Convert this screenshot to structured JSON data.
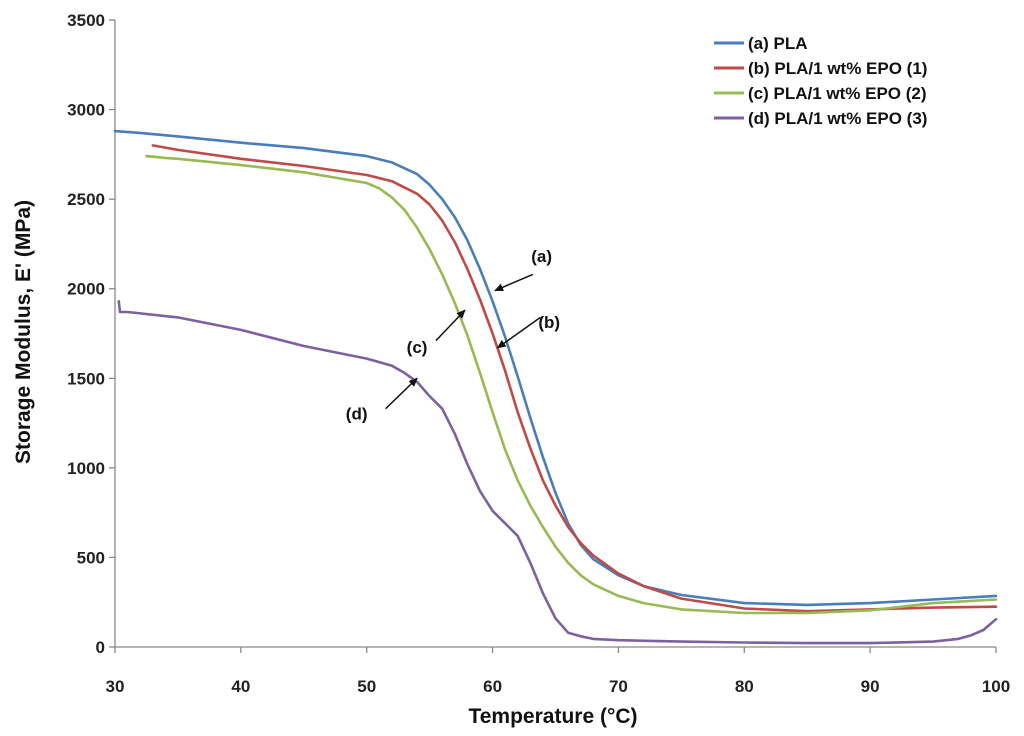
{
  "chart_data": {
    "type": "line",
    "xlabel": "Temperature (°C)",
    "ylabel": "Storage Modulus, E' (MPa)",
    "xlim": [
      30,
      100
    ],
    "ylim": [
      0,
      3500
    ],
    "xticks": [
      30,
      40,
      50,
      60,
      70,
      80,
      90,
      100
    ],
    "yticks": [
      0,
      500,
      1000,
      1500,
      2000,
      2500,
      3000,
      3500
    ],
    "grid": false,
    "legend_position": "top-right",
    "series": [
      {
        "name": "(a) PLA",
        "color": "#4a7ebb",
        "x": [
          30,
          32,
          35,
          40,
          45,
          50,
          52,
          54,
          55,
          56,
          57,
          58,
          59,
          60,
          61,
          62,
          63,
          64,
          65,
          66,
          67,
          68,
          70,
          72,
          75,
          80,
          85,
          90,
          95,
          100
        ],
        "y": [
          2880,
          2870,
          2850,
          2815,
          2785,
          2740,
          2705,
          2640,
          2580,
          2500,
          2400,
          2270,
          2110,
          1930,
          1730,
          1510,
          1280,
          1060,
          860,
          690,
          570,
          490,
          400,
          340,
          290,
          245,
          235,
          245,
          265,
          285
        ]
      },
      {
        "name": "(b) PLA/1 wt% EPO (1)",
        "color": "#be4b48",
        "x": [
          33,
          35,
          40,
          45,
          50,
          52,
          54,
          55,
          56,
          57,
          58,
          59,
          60,
          61,
          62,
          63,
          64,
          65,
          66,
          67,
          68,
          70,
          72,
          75,
          80,
          85,
          90,
          95,
          100
        ],
        "y": [
          2800,
          2775,
          2725,
          2685,
          2635,
          2600,
          2530,
          2470,
          2380,
          2260,
          2110,
          1940,
          1750,
          1540,
          1310,
          1110,
          930,
          790,
          670,
          580,
          510,
          410,
          340,
          270,
          215,
          200,
          210,
          220,
          225
        ]
      },
      {
        "name": "(c) PLA/1 wt% EPO (2)",
        "color": "#98b954",
        "x": [
          32.5,
          34,
          35,
          40,
          45,
          50,
          51,
          52,
          53,
          54,
          55,
          56,
          57,
          58,
          59,
          60,
          61,
          62,
          63,
          64,
          65,
          66,
          67,
          68,
          70,
          72,
          75,
          80,
          85,
          90,
          95,
          100
        ],
        "y": [
          2740,
          2730,
          2725,
          2690,
          2650,
          2590,
          2560,
          2510,
          2440,
          2340,
          2220,
          2080,
          1920,
          1740,
          1530,
          1310,
          1100,
          930,
          790,
          670,
          560,
          470,
          400,
          350,
          285,
          245,
          210,
          190,
          190,
          205,
          245,
          265
        ]
      },
      {
        "name": "(d) PLA/1 wt% EPO (3)",
        "color": "#7d60a0",
        "x": [
          30.3,
          30.4,
          31,
          35,
          40,
          45,
          50,
          52,
          53,
          54,
          55,
          56,
          57,
          58,
          59,
          60,
          61,
          62,
          63,
          64,
          65,
          66,
          67,
          68,
          70,
          75,
          80,
          85,
          90,
          95,
          97,
          98,
          99,
          100
        ],
        "y": [
          1930,
          1870,
          1870,
          1840,
          1770,
          1680,
          1610,
          1570,
          1530,
          1480,
          1400,
          1330,
          1190,
          1020,
          870,
          760,
          690,
          620,
          470,
          300,
          160,
          80,
          60,
          45,
          38,
          30,
          25,
          22,
          22,
          30,
          45,
          65,
          95,
          155
        ]
      }
    ],
    "annotations": [
      {
        "label": "(a)",
        "text_at": [
          63.9,
          2150
        ],
        "arrow_from": [
          63.2,
          2080
        ],
        "arrow_to": [
          60.2,
          1990
        ]
      },
      {
        "label": "(b)",
        "text_at": [
          64.5,
          1780
        ],
        "arrow_from": [
          63.8,
          1840
        ],
        "arrow_to": [
          60.4,
          1670
        ]
      },
      {
        "label": "(c)",
        "text_at": [
          54,
          1640
        ],
        "arrow_from": [
          55.5,
          1710
        ],
        "arrow_to": [
          57.8,
          1880
        ]
      },
      {
        "label": "(d)",
        "text_at": [
          49.2,
          1270
        ],
        "arrow_from": [
          51.5,
          1330
        ],
        "arrow_to": [
          54,
          1500
        ]
      }
    ]
  }
}
